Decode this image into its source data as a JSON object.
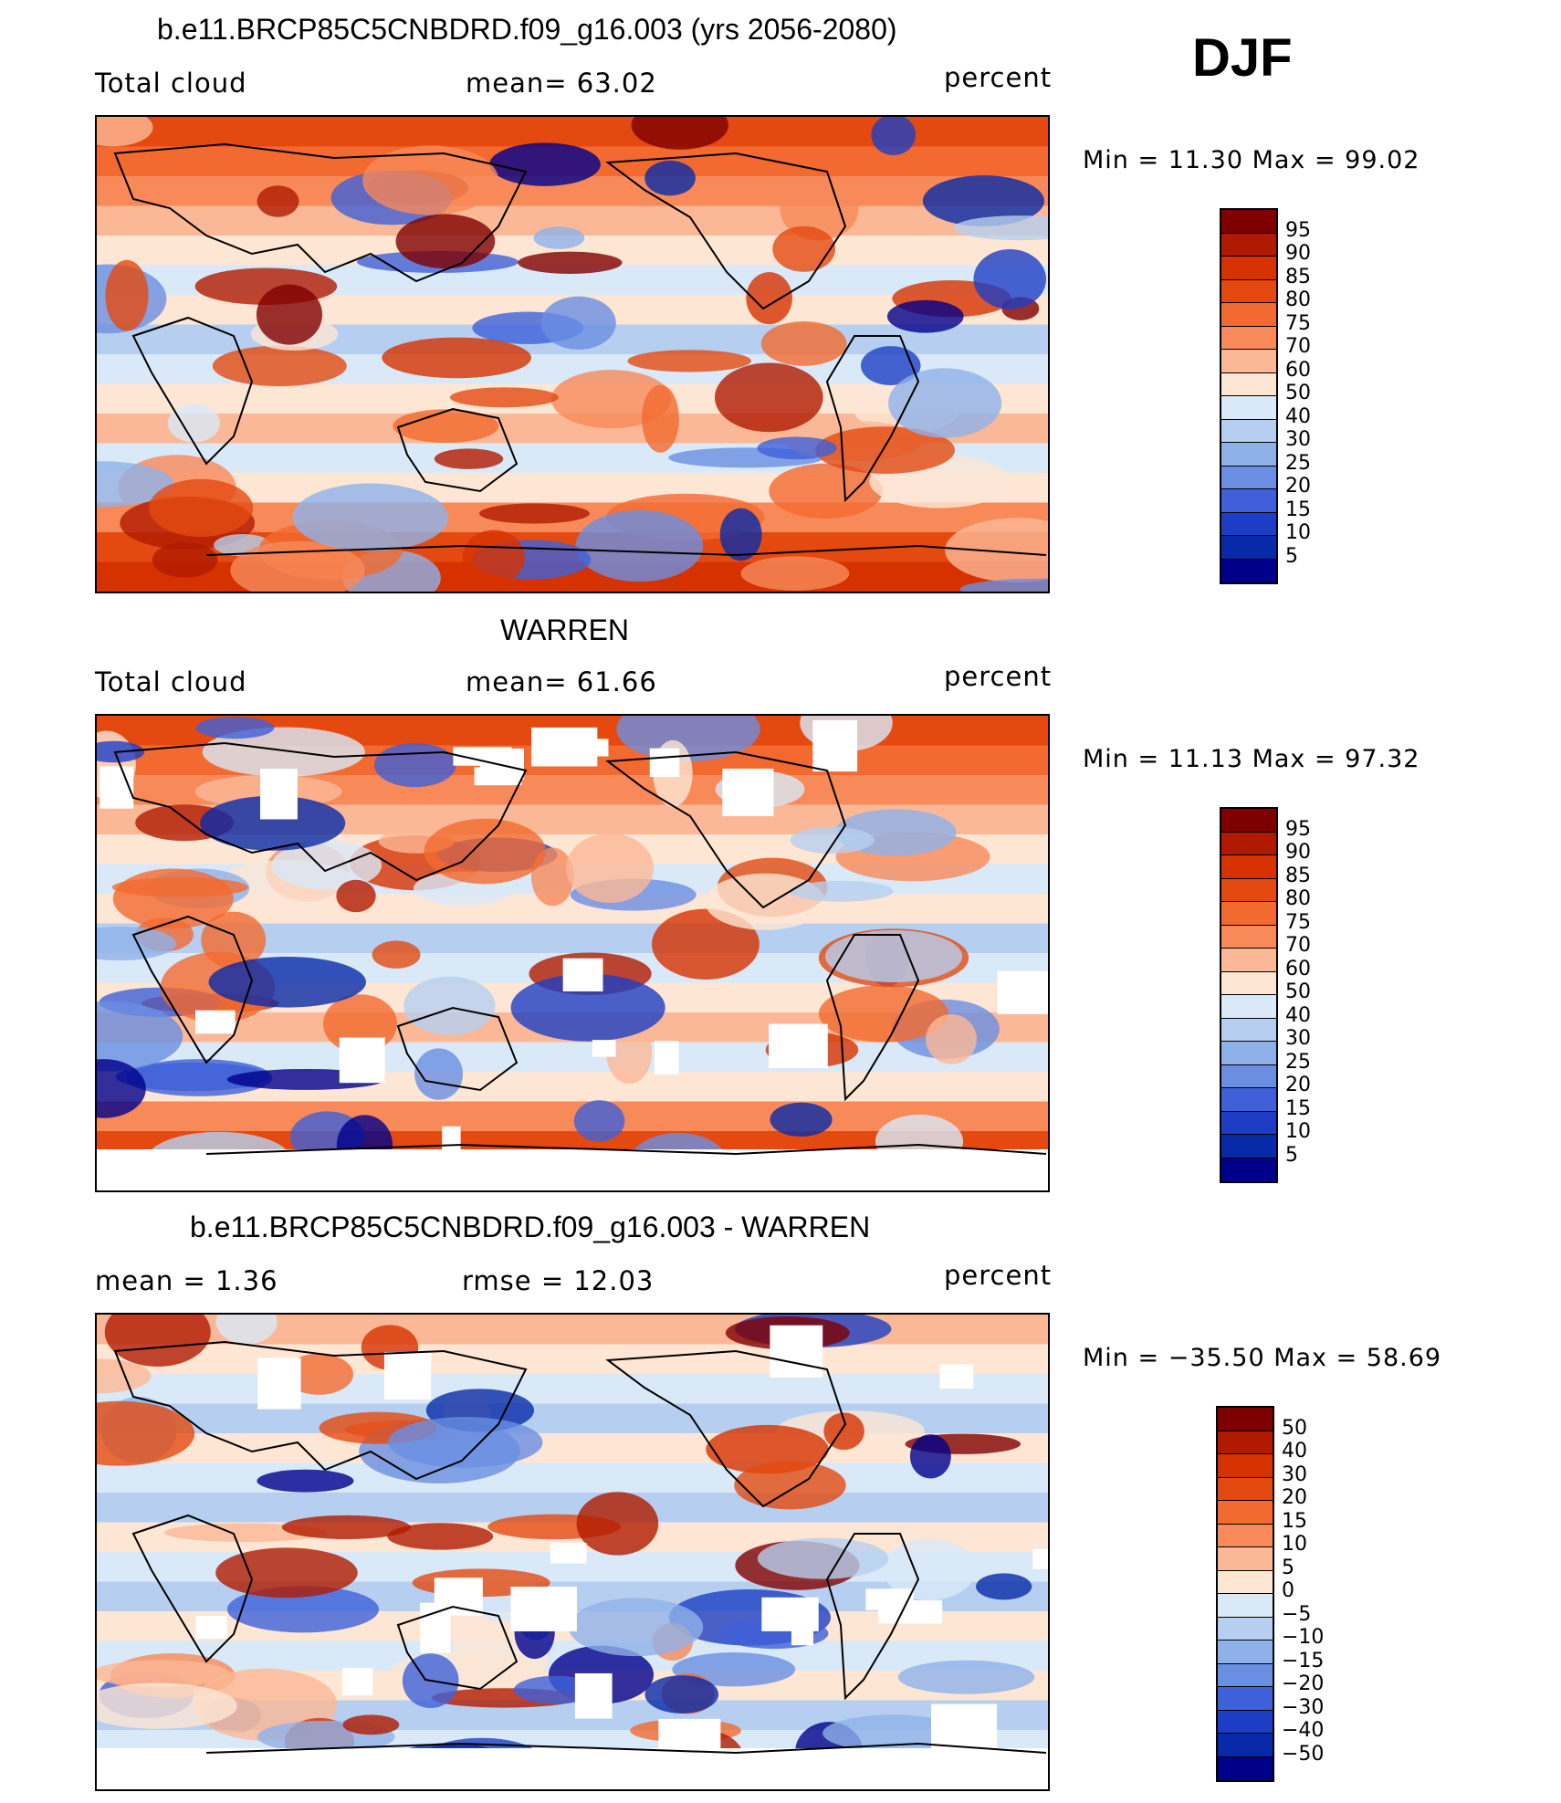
{
  "season": "DJF",
  "panels": [
    {
      "title": "b.e11.BRCP85C5CNBDRD.f09_g16.003 (yrs 2056-2080)",
      "left_label": "Total cloud",
      "center_label": "mean=   63.02",
      "units": "percent",
      "minmax": "Min =   11.30 Max =   99.02",
      "colorbar": {
        "labels": [
          "95",
          "90",
          "85",
          "80",
          "75",
          "70",
          "60",
          "50",
          "40",
          "30",
          "25",
          "20",
          "15",
          "10",
          "5"
        ],
        "colors": [
          "#7f0000",
          "#b01a00",
          "#d63200",
          "#e44a10",
          "#f26a30",
          "#f88a5a",
          "#fbb896",
          "#fde6d4",
          "#d9e9f7",
          "#b6cff0",
          "#8fb1ea",
          "#6a8ee2",
          "#3f60d8",
          "#1d3ec4",
          "#082aa8",
          "#00008b"
        ]
      },
      "map_seed": 11,
      "has_missing": false
    },
    {
      "title": "WARREN",
      "left_label": "Total cloud",
      "center_label": "mean=   61.66",
      "units": "percent",
      "minmax": "Min =   11.13 Max =   97.32",
      "colorbar": {
        "labels": [
          "95",
          "90",
          "85",
          "80",
          "75",
          "70",
          "60",
          "50",
          "40",
          "30",
          "25",
          "20",
          "15",
          "10",
          "5"
        ],
        "colors": [
          "#7f0000",
          "#b01a00",
          "#d63200",
          "#e44a10",
          "#f26a30",
          "#f88a5a",
          "#fbb896",
          "#fde6d4",
          "#d9e9f7",
          "#b6cff0",
          "#8fb1ea",
          "#6a8ee2",
          "#3f60d8",
          "#1d3ec4",
          "#082aa8",
          "#00008b"
        ]
      },
      "map_seed": 23,
      "has_missing": true
    },
    {
      "title": "b.e11.BRCP85C5CNBDRD.f09_g16.003 - WARREN",
      "left_label": "mean =     1.36",
      "center_label": "rmse =   12.03",
      "units": "percent",
      "minmax": "Min = −35.50 Max =   58.69",
      "colorbar": {
        "labels": [
          "50",
          "40",
          "30",
          "20",
          "15",
          "10",
          "5",
          "0",
          "−5",
          "−10",
          "−15",
          "−20",
          "−30",
          "−40",
          "−50"
        ],
        "colors": [
          "#7f0000",
          "#b01a00",
          "#d63200",
          "#e44a10",
          "#f26a30",
          "#f88a5a",
          "#fbb896",
          "#fde6d4",
          "#d9e9f7",
          "#b6cff0",
          "#8fb1ea",
          "#6a8ee2",
          "#3f60d8",
          "#1d3ec4",
          "#082aa8",
          "#00008b"
        ]
      },
      "map_seed": 37,
      "has_missing": true
    }
  ]
}
